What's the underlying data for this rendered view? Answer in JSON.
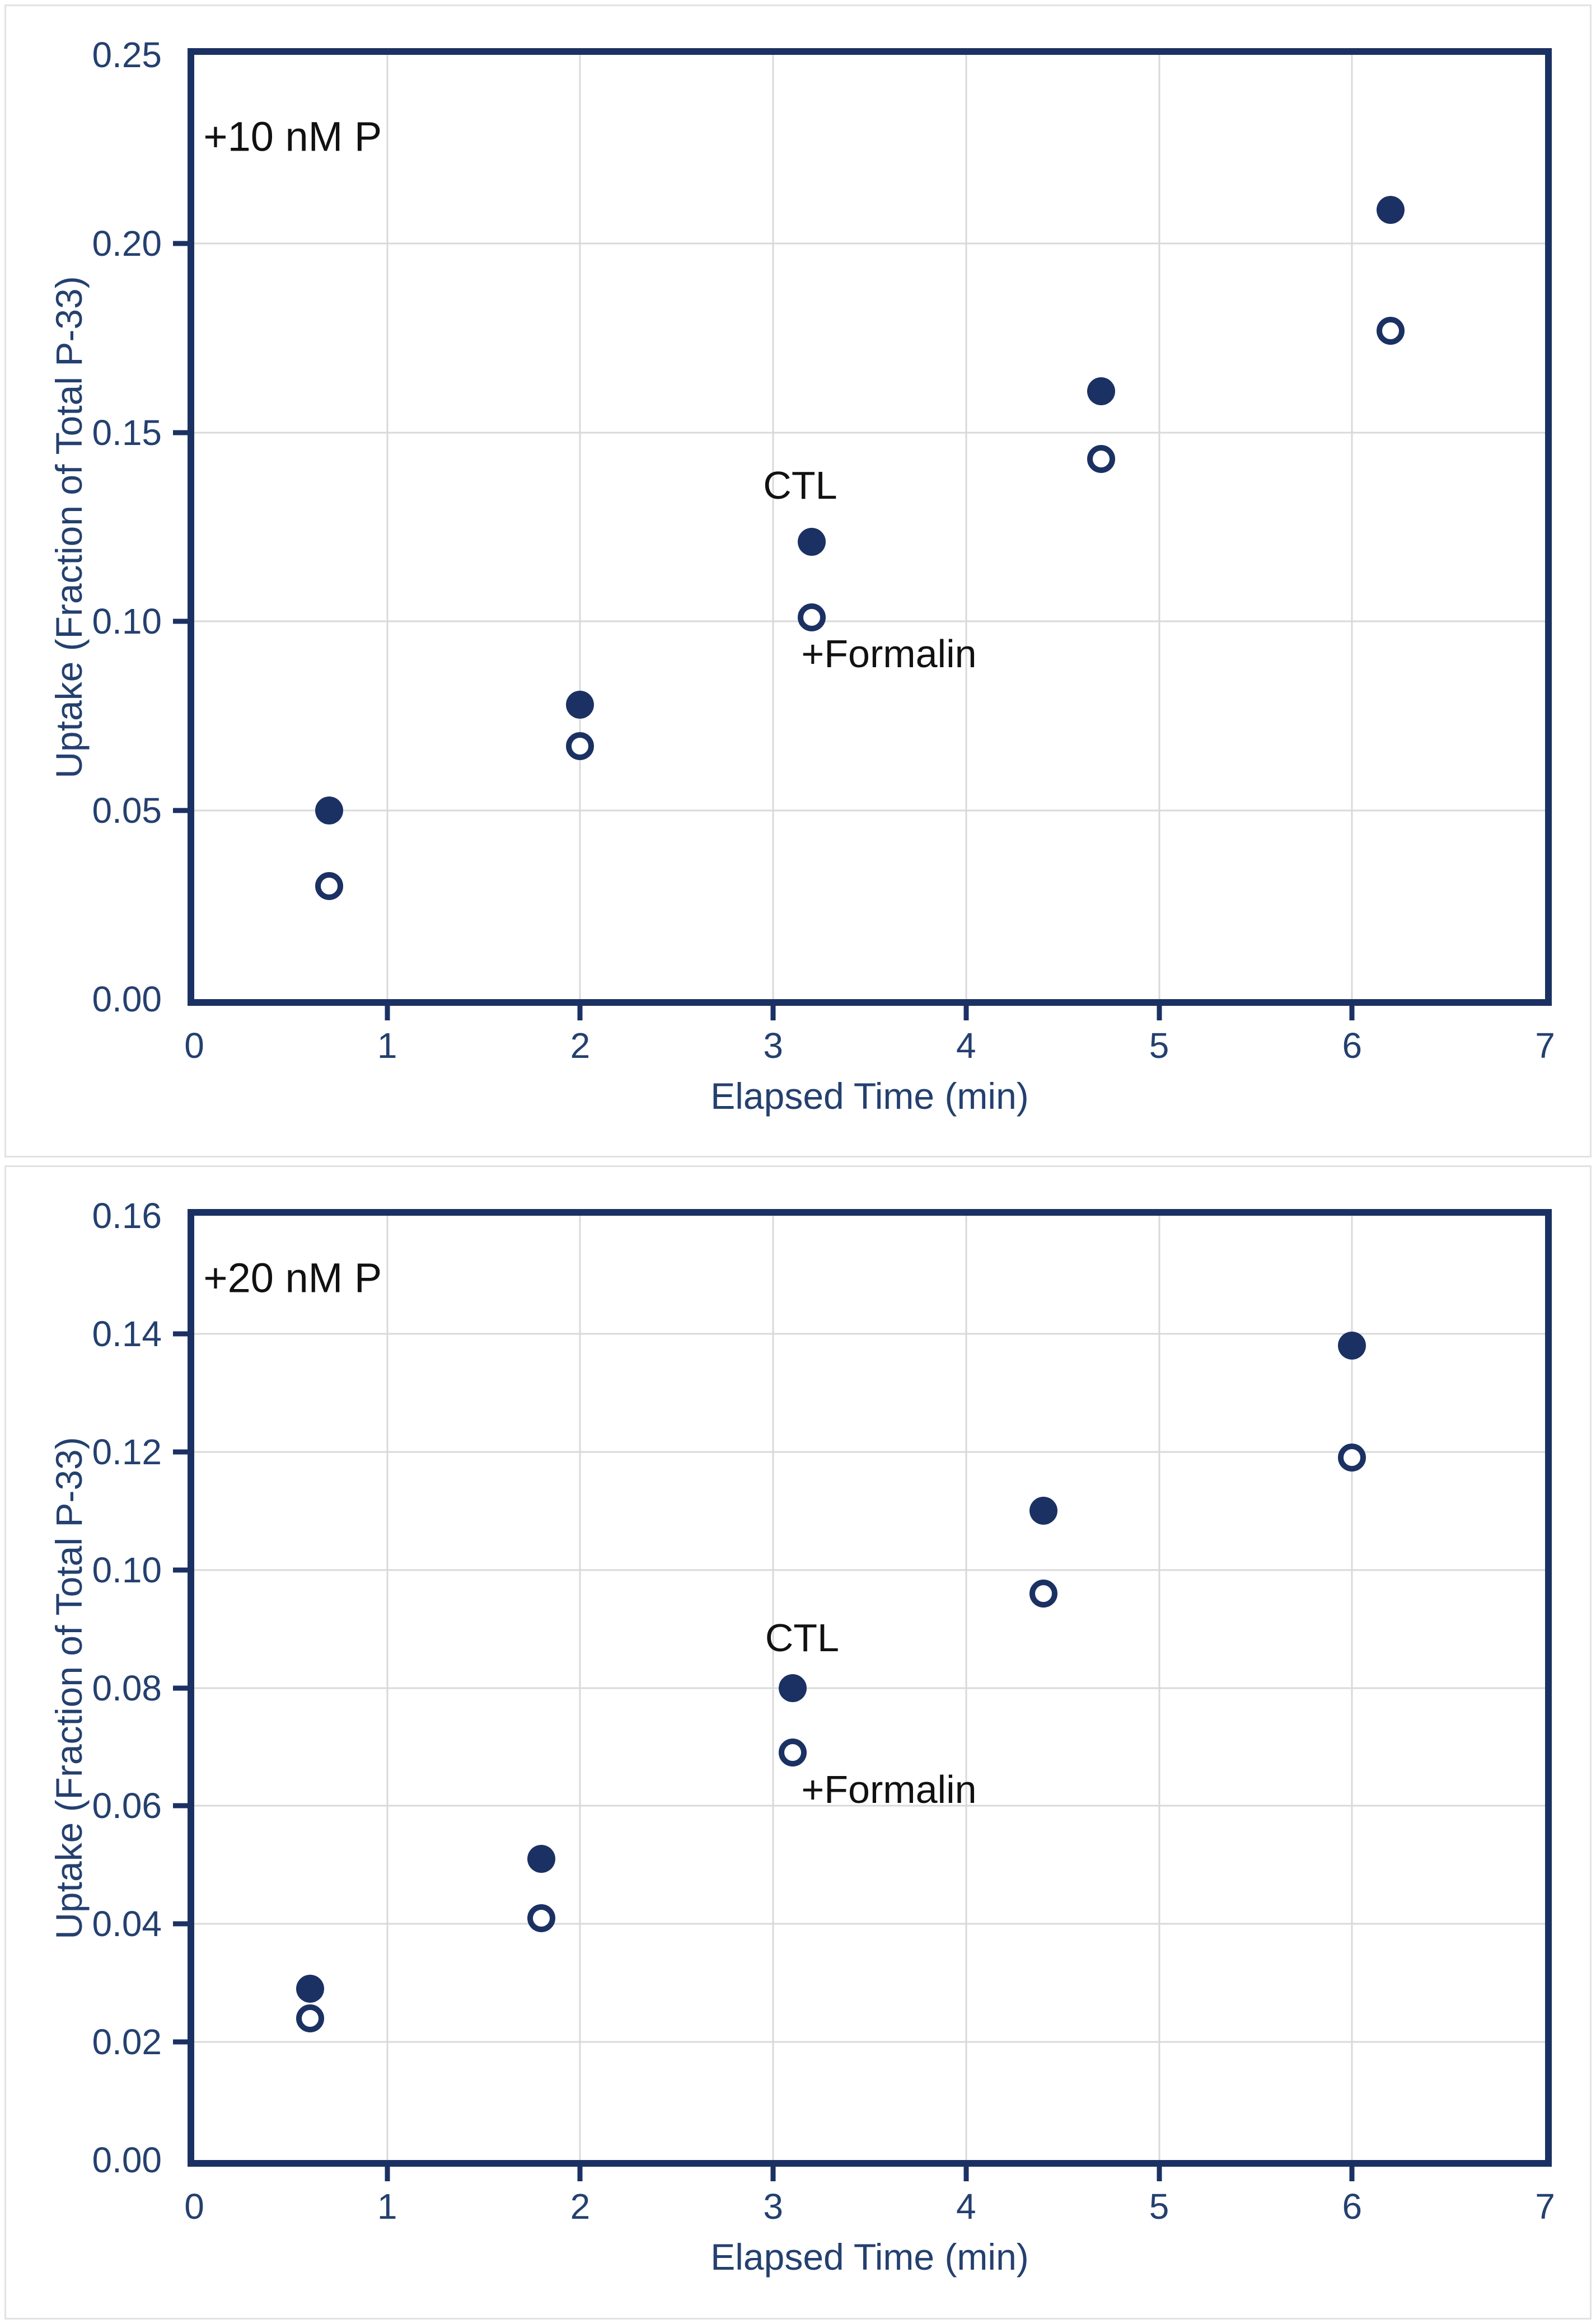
{
  "colors": {
    "navy_line": "#1b3163",
    "navy_text": "#24406f",
    "marker": "#1b3163",
    "gridline": "#d9d9d9",
    "panel_border": "#e2e2e2",
    "annotation_text": "#111111",
    "background": "#ffffff"
  },
  "chart_data": [
    {
      "type": "scatter",
      "panel_label": "top",
      "annotation": "+10 nM P",
      "annotation_pos": [
        0.51,
        0.2284
      ],
      "xlabel": "Elapsed Time (min)",
      "ylabel": "Uptake (Fraction of Total P-33)",
      "xlim": [
        0,
        7
      ],
      "ylim": [
        0,
        0.25
      ],
      "x_ticks": [
        0,
        1,
        2,
        3,
        4,
        5,
        6,
        7
      ],
      "x_tick_labels": [
        "0",
        "1",
        "2",
        "3",
        "4",
        "5",
        "6",
        "7"
      ],
      "y_ticks": [
        0,
        0.05,
        0.1,
        0.15,
        0.2,
        0.25
      ],
      "y_tick_labels": [
        "0.00",
        "0.05",
        "0.10",
        "0.15",
        "0.20",
        "0.25"
      ],
      "grid": true,
      "legend": "direct-labels",
      "series": [
        {
          "name": "CTL",
          "marker": "filled-circle",
          "points": [
            [
              0.7,
              0.05
            ],
            [
              2.0,
              0.078
            ],
            [
              3.2,
              0.121
            ],
            [
              4.7,
              0.161
            ],
            [
              6.2,
              0.209
            ]
          ],
          "label_pos": [
            3.14,
            0.136
          ]
        },
        {
          "name": "+Formalin",
          "marker": "open-circle",
          "points": [
            [
              0.7,
              0.03
            ],
            [
              2.0,
              0.067
            ],
            [
              3.2,
              0.101
            ],
            [
              4.7,
              0.143
            ],
            [
              6.2,
              0.177
            ]
          ],
          "label_pos": [
            3.6,
            0.0915
          ]
        }
      ]
    },
    {
      "type": "scatter",
      "panel_label": "bottom",
      "annotation": "+20 nM P",
      "annotation_pos": [
        0.51,
        0.1495
      ],
      "xlabel": "Elapsed Time (min)",
      "ylabel": "Uptake (Fraction of Total P-33)",
      "xlim": [
        0,
        7
      ],
      "ylim": [
        0,
        0.16
      ],
      "x_ticks": [
        0,
        1,
        2,
        3,
        4,
        5,
        6,
        7
      ],
      "x_tick_labels": [
        "0",
        "1",
        "2",
        "3",
        "4",
        "5",
        "6",
        "7"
      ],
      "y_ticks": [
        0,
        0.02,
        0.04,
        0.06,
        0.08,
        0.1,
        0.12,
        0.14,
        0.16
      ],
      "y_tick_labels": [
        "0.00",
        "0.02",
        "0.04",
        "0.06",
        "0.08",
        "0.10",
        "0.12",
        "0.14",
        "0.16"
      ],
      "grid": true,
      "legend": "direct-labels",
      "series": [
        {
          "name": "CTL",
          "marker": "filled-circle",
          "points": [
            [
              0.6,
              0.029
            ],
            [
              1.8,
              0.051
            ],
            [
              3.1,
              0.08
            ],
            [
              4.4,
              0.11
            ],
            [
              6.0,
              0.138
            ]
          ],
          "label_pos": [
            3.15,
            0.0885
          ]
        },
        {
          "name": "+Formalin",
          "marker": "open-circle",
          "points": [
            [
              0.6,
              0.024
            ],
            [
              1.8,
              0.041
            ],
            [
              3.1,
              0.069
            ],
            [
              4.4,
              0.096
            ],
            [
              6.0,
              0.119
            ]
          ],
          "label_pos": [
            3.6,
            0.0628
          ]
        }
      ]
    }
  ]
}
